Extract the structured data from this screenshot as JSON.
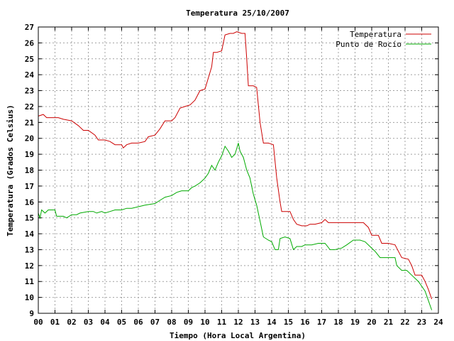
{
  "chart_data": {
    "type": "line",
    "title": "Temperatura 25/10/2007",
    "xlabel": "Tiempo (Hora Local Argentina)",
    "ylabel": "Temperatura (Grados Celsius)",
    "xlim": [
      0,
      24
    ],
    "ylim": [
      9,
      27
    ],
    "x_ticks": [
      "00",
      "01",
      "02",
      "03",
      "04",
      "05",
      "06",
      "07",
      "08",
      "09",
      "10",
      "11",
      "12",
      "13",
      "14",
      "15",
      "16",
      "17",
      "18",
      "19",
      "20",
      "21",
      "22",
      "23",
      "24"
    ],
    "y_ticks": [
      "9",
      "10",
      "11",
      "12",
      "13",
      "14",
      "15",
      "16",
      "17",
      "18",
      "19",
      "20",
      "21",
      "22",
      "23",
      "24",
      "25",
      "26",
      "27"
    ],
    "grid": true,
    "legend_position": "top-right",
    "series": [
      {
        "name": "Temperatura",
        "color": "#cc0000",
        "points": [
          [
            0.0,
            21.4
          ],
          [
            0.3,
            21.5
          ],
          [
            0.5,
            21.3
          ],
          [
            1.0,
            21.3
          ],
          [
            1.2,
            21.3
          ],
          [
            1.5,
            21.2
          ],
          [
            2.0,
            21.1
          ],
          [
            2.4,
            20.8
          ],
          [
            2.7,
            20.5
          ],
          [
            3.0,
            20.5
          ],
          [
            3.4,
            20.2
          ],
          [
            3.6,
            19.9
          ],
          [
            4.0,
            19.9
          ],
          [
            4.3,
            19.8
          ],
          [
            4.6,
            19.6
          ],
          [
            5.0,
            19.6
          ],
          [
            5.1,
            19.4
          ],
          [
            5.3,
            19.6
          ],
          [
            5.6,
            19.7
          ],
          [
            6.0,
            19.7
          ],
          [
            6.4,
            19.8
          ],
          [
            6.6,
            20.1
          ],
          [
            7.0,
            20.2
          ],
          [
            7.3,
            20.6
          ],
          [
            7.6,
            21.1
          ],
          [
            8.0,
            21.1
          ],
          [
            8.2,
            21.3
          ],
          [
            8.5,
            21.9
          ],
          [
            8.8,
            22.0
          ],
          [
            9.1,
            22.1
          ],
          [
            9.4,
            22.4
          ],
          [
            9.7,
            23.0
          ],
          [
            10.0,
            23.1
          ],
          [
            10.2,
            23.8
          ],
          [
            10.4,
            24.5
          ],
          [
            10.5,
            25.4
          ],
          [
            10.7,
            25.4
          ],
          [
            11.0,
            25.5
          ],
          [
            11.2,
            26.5
          ],
          [
            11.5,
            26.6
          ],
          [
            11.7,
            26.6
          ],
          [
            11.9,
            26.7
          ],
          [
            12.2,
            26.6
          ],
          [
            12.4,
            26.6
          ],
          [
            12.5,
            25.0
          ],
          [
            12.6,
            23.3
          ],
          [
            12.9,
            23.3
          ],
          [
            13.1,
            23.2
          ],
          [
            13.3,
            21.0
          ],
          [
            13.5,
            19.7
          ],
          [
            13.8,
            19.7
          ],
          [
            14.1,
            19.6
          ],
          [
            14.3,
            17.5
          ],
          [
            14.5,
            16.0
          ],
          [
            14.6,
            15.4
          ],
          [
            14.9,
            15.4
          ],
          [
            15.1,
            15.4
          ],
          [
            15.3,
            14.9
          ],
          [
            15.5,
            14.6
          ],
          [
            15.8,
            14.5
          ],
          [
            16.1,
            14.5
          ],
          [
            16.3,
            14.6
          ],
          [
            16.6,
            14.6
          ],
          [
            17.0,
            14.7
          ],
          [
            17.2,
            14.9
          ],
          [
            17.4,
            14.7
          ],
          [
            18.0,
            14.7
          ],
          [
            19.0,
            14.7
          ],
          [
            19.5,
            14.7
          ],
          [
            19.8,
            14.4
          ],
          [
            20.0,
            13.9
          ],
          [
            20.4,
            13.9
          ],
          [
            20.6,
            13.4
          ],
          [
            21.0,
            13.4
          ],
          [
            21.4,
            13.3
          ],
          [
            21.6,
            12.9
          ],
          [
            21.8,
            12.5
          ],
          [
            22.2,
            12.4
          ],
          [
            22.4,
            12.0
          ],
          [
            22.6,
            11.4
          ],
          [
            23.0,
            11.4
          ],
          [
            23.2,
            11.0
          ],
          [
            23.4,
            10.5
          ],
          [
            23.6,
            9.9
          ]
        ]
      },
      {
        "name": "Punto de Rocío",
        "color": "#00aa00",
        "points": [
          [
            0.0,
            15.3
          ],
          [
            0.1,
            15.0
          ],
          [
            0.2,
            15.5
          ],
          [
            0.4,
            15.3
          ],
          [
            0.6,
            15.5
          ],
          [
            1.0,
            15.5
          ],
          [
            1.1,
            15.1
          ],
          [
            1.5,
            15.1
          ],
          [
            1.7,
            15.0
          ],
          [
            2.0,
            15.2
          ],
          [
            2.3,
            15.2
          ],
          [
            2.5,
            15.3
          ],
          [
            3.0,
            15.4
          ],
          [
            3.3,
            15.4
          ],
          [
            3.5,
            15.3
          ],
          [
            3.8,
            15.4
          ],
          [
            4.0,
            15.3
          ],
          [
            4.3,
            15.4
          ],
          [
            4.6,
            15.5
          ],
          [
            5.0,
            15.5
          ],
          [
            5.3,
            15.6
          ],
          [
            5.6,
            15.6
          ],
          [
            6.0,
            15.7
          ],
          [
            6.4,
            15.8
          ],
          [
            7.0,
            15.9
          ],
          [
            7.3,
            16.1
          ],
          [
            7.6,
            16.3
          ],
          [
            8.0,
            16.4
          ],
          [
            8.3,
            16.6
          ],
          [
            8.6,
            16.7
          ],
          [
            9.0,
            16.7
          ],
          [
            9.2,
            16.9
          ],
          [
            9.4,
            17.0
          ],
          [
            9.7,
            17.2
          ],
          [
            10.0,
            17.5
          ],
          [
            10.2,
            17.8
          ],
          [
            10.4,
            18.3
          ],
          [
            10.6,
            18.0
          ],
          [
            10.8,
            18.5
          ],
          [
            11.0,
            18.9
          ],
          [
            11.2,
            19.5
          ],
          [
            11.4,
            19.2
          ],
          [
            11.6,
            18.8
          ],
          [
            11.8,
            19.0
          ],
          [
            12.0,
            19.7
          ],
          [
            12.1,
            19.2
          ],
          [
            12.3,
            18.8
          ],
          [
            12.5,
            18.0
          ],
          [
            12.7,
            17.5
          ],
          [
            12.9,
            16.5
          ],
          [
            13.1,
            15.8
          ],
          [
            13.3,
            14.8
          ],
          [
            13.5,
            13.8
          ],
          [
            13.8,
            13.6
          ],
          [
            14.0,
            13.5
          ],
          [
            14.2,
            13.0
          ],
          [
            14.4,
            13.0
          ],
          [
            14.5,
            13.7
          ],
          [
            14.8,
            13.8
          ],
          [
            15.1,
            13.7
          ],
          [
            15.3,
            13.0
          ],
          [
            15.5,
            13.2
          ],
          [
            15.8,
            13.2
          ],
          [
            16.0,
            13.3
          ],
          [
            16.4,
            13.3
          ],
          [
            16.8,
            13.4
          ],
          [
            17.2,
            13.4
          ],
          [
            17.5,
            13.0
          ],
          [
            17.8,
            13.0
          ],
          [
            18.2,
            13.1
          ],
          [
            18.5,
            13.3
          ],
          [
            18.9,
            13.6
          ],
          [
            19.3,
            13.6
          ],
          [
            19.6,
            13.5
          ],
          [
            19.9,
            13.2
          ],
          [
            20.2,
            12.9
          ],
          [
            20.5,
            12.5
          ],
          [
            21.0,
            12.5
          ],
          [
            21.4,
            12.5
          ],
          [
            21.5,
            12.0
          ],
          [
            21.8,
            11.7
          ],
          [
            22.1,
            11.7
          ],
          [
            22.4,
            11.4
          ],
          [
            22.8,
            11.0
          ],
          [
            23.0,
            10.7
          ],
          [
            23.2,
            10.4
          ],
          [
            23.4,
            9.8
          ],
          [
            23.6,
            9.2
          ]
        ]
      }
    ]
  }
}
